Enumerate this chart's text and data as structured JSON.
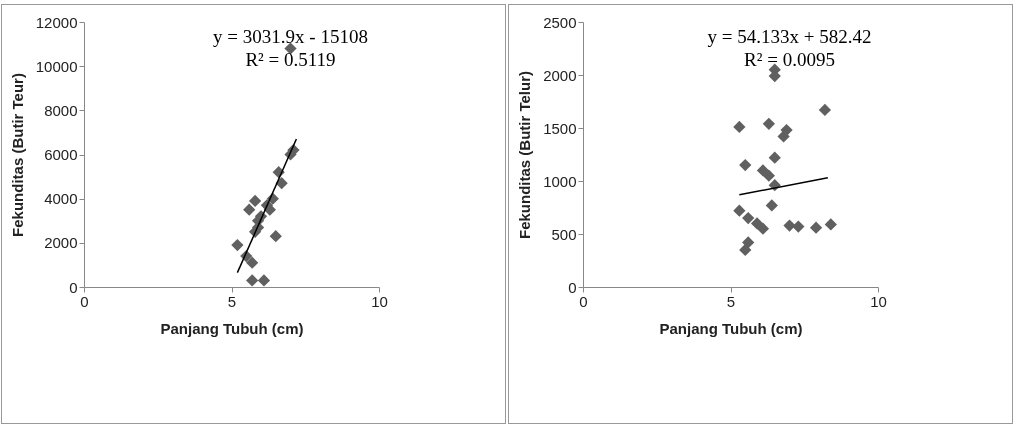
{
  "chart_data": [
    {
      "type": "scatter",
      "xlabel": "Panjang Tubuh (cm)",
      "ylabel": "Fekunditas (Butir Teur)",
      "xlim": [
        0,
        10
      ],
      "xticks": [
        0,
        5,
        10
      ],
      "ylim": [
        0,
        12000
      ],
      "yticks": [
        0,
        2000,
        4000,
        6000,
        8000,
        10000,
        12000
      ],
      "grid": false,
      "annotations": [
        "y = 3031.9x - 15108",
        "R² = 0.5119"
      ],
      "series": [
        {
          "color": "#606060",
          "marker": "diamond",
          "x": [
            7.0,
            7.1,
            7.0,
            6.6,
            6.7,
            6.4,
            6.3,
            5.8,
            5.6,
            6.0,
            5.9,
            5.8,
            6.5,
            5.2,
            5.5,
            5.7,
            5.7,
            6.1,
            6.2,
            5.9
          ],
          "values": [
            10800,
            6200,
            6000,
            5200,
            4700,
            4000,
            3500,
            3900,
            3500,
            3200,
            3000,
            2500,
            2300,
            1900,
            1400,
            1100,
            300,
            300,
            3700,
            2700
          ]
        },
        {
          "type": "line",
          "color": "#000000",
          "x": [
            5.2,
            7.2
          ],
          "values": [
            650,
            6700
          ]
        }
      ]
    },
    {
      "type": "scatter",
      "xlabel": "Panjang Tubuh (cm)",
      "ylabel": "Fekunditas (Butir Telur)",
      "xlim": [
        0,
        10
      ],
      "xticks": [
        0,
        5,
        10
      ],
      "ylim": [
        0,
        2500
      ],
      "yticks": [
        0,
        500,
        1000,
        1500,
        2000,
        2500
      ],
      "grid": false,
      "annotations": [
        "y = 54.133x + 582.42",
        "R² = 0.0095"
      ],
      "series": [
        {
          "color": "#606060",
          "marker": "diamond",
          "x": [
            6.5,
            6.5,
            8.2,
            5.3,
            6.3,
            6.9,
            6.8,
            6.5,
            5.5,
            6.1,
            6.3,
            6.5,
            6.4,
            5.3,
            5.6,
            5.9,
            6.1,
            7.0,
            7.3,
            7.9,
            8.4,
            5.6,
            5.5
          ],
          "values": [
            2050,
            1990,
            1670,
            1510,
            1540,
            1480,
            1420,
            1220,
            1150,
            1100,
            1050,
            960,
            770,
            720,
            650,
            600,
            550,
            580,
            570,
            560,
            590,
            420,
            350
          ]
        },
        {
          "type": "line",
          "color": "#000000",
          "x": [
            5.3,
            8.3
          ],
          "values": [
            870,
            1030
          ]
        }
      ]
    }
  ]
}
